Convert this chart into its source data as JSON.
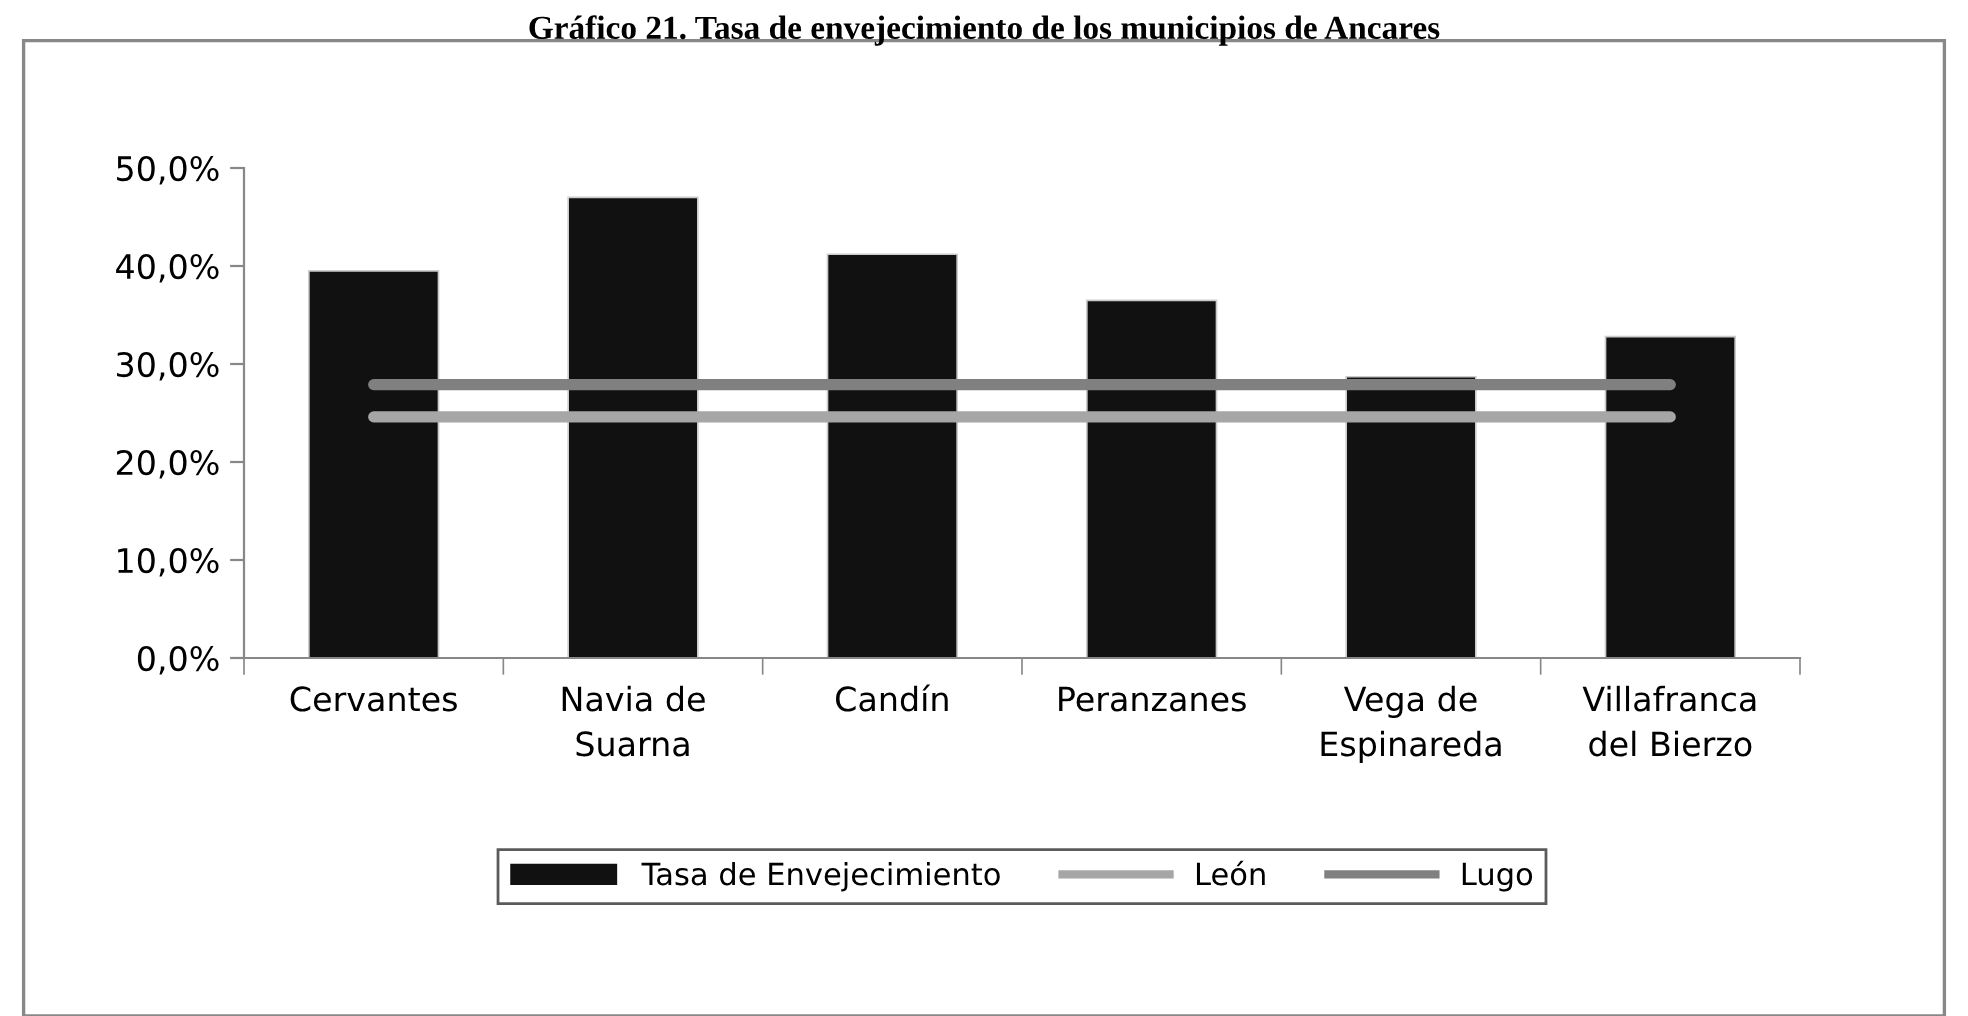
{
  "chart_data": {
    "type": "bar",
    "title": "Gráfico 21. Tasa de envejecimiento de los municipios de Ancares",
    "categories": [
      "Cervantes",
      "Navia de\nSuarna",
      "Candín",
      "Peranzanes",
      "Vega de\nEspinareda",
      "Villafranca\ndel Bierzo"
    ],
    "series": [
      {
        "name": "Tasa de Envejecimiento",
        "color": "#111111",
        "values": [
          39.5,
          47.0,
          41.2,
          36.5,
          28.7,
          32.8
        ]
      },
      {
        "name": "León",
        "type": "line",
        "color": "#a6a6a6",
        "values": [
          24.6,
          24.6,
          24.6,
          24.6,
          24.6,
          24.6
        ]
      },
      {
        "name": "Lugo",
        "type": "line",
        "color": "#808080",
        "values": [
          27.9,
          27.9,
          27.9,
          27.9,
          27.9,
          27.9
        ]
      }
    ],
    "ylim": [
      0,
      50
    ],
    "yticks": [
      {
        "value": 0,
        "label": "0,0%"
      },
      {
        "value": 10,
        "label": "10,0%"
      },
      {
        "value": 20,
        "label": "20,0%"
      },
      {
        "value": 30,
        "label": "30,0%"
      },
      {
        "value": 40,
        "label": "40,0%"
      },
      {
        "value": 50,
        "label": "50,0%"
      }
    ],
    "grid": false,
    "legend": "bottom",
    "marker": "none"
  }
}
